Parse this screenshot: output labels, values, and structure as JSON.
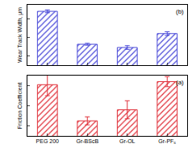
{
  "chart_data": [
    {
      "type": "bar",
      "annotations": [
        "(b)"
      ],
      "y_label": "Wear Track Width, μm",
      "categories": [
        "PEG 200",
        "Gr-BScB",
        "Gr-OL",
        "Gr-PF₆"
      ],
      "values": [
        256,
        185,
        178,
        208
      ],
      "errors": [
        3,
        2,
        4,
        4
      ],
      "color": "#4a4ad8",
      "ylim": [
        140,
        270
      ],
      "yticks": [
        160,
        200,
        240
      ],
      "tick_labels": false
    },
    {
      "type": "bar",
      "annotations": [
        "(a)"
      ],
      "y_label": "Friction Coefficient",
      "categories": [
        "PEG 200",
        "Gr-BScB",
        "Gr-OL",
        "Gr-PF₆"
      ],
      "values": [
        0.111,
        0.075,
        0.086,
        0.114
      ],
      "errors": [
        0.011,
        0.004,
        0.009,
        0.005
      ],
      "color": "#e0303a",
      "ylim": [
        0.06,
        0.12
      ],
      "yticks": [
        0.07,
        0.09,
        0.11
      ],
      "tick_labels": "x"
    }
  ]
}
